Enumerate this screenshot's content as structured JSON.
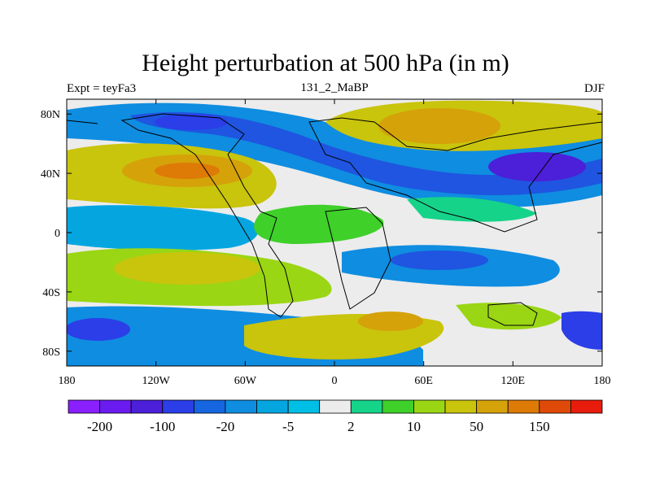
{
  "title": "Height perturbation at 500 hPa (in m)",
  "left_label": "Expt = teyFa3",
  "center_label": "131_2_MaBP",
  "right_label": "DJF",
  "lat_ticks": [
    "80N",
    "40N",
    "0",
    "40S",
    "80S"
  ],
  "lon_ticks": [
    "180",
    "120W",
    "60W",
    "0",
    "60E",
    "120E",
    "180"
  ],
  "colorbar": {
    "colors": [
      "#8a1fff",
      "#6a1bf0",
      "#4c1fd8",
      "#2b3ee8",
      "#1566e0",
      "#0f8de0",
      "#05a6e0",
      "#00bfe6",
      "#ececec",
      "#16d38a",
      "#3fd02a",
      "#9ad614",
      "#c9c40c",
      "#d5a20a",
      "#de7a06",
      "#e04a08",
      "#e81c0c"
    ],
    "tick_labels": [
      "-200",
      "-100",
      "-20",
      "-5",
      "2",
      "10",
      "50",
      "150"
    ]
  },
  "colors": {
    "background_fill": "#ececec",
    "coastline": "#000000"
  }
}
